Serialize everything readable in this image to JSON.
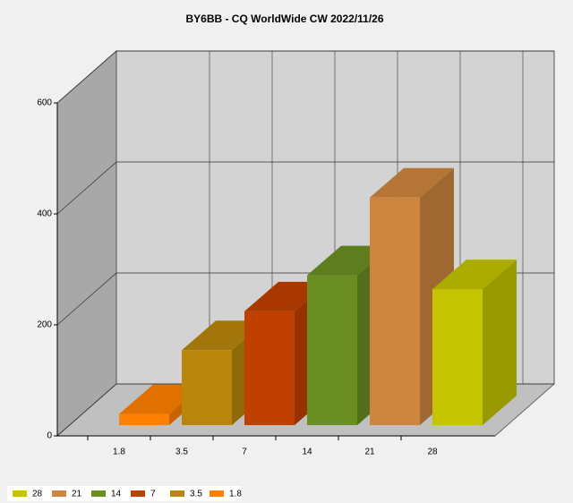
{
  "chart_data": {
    "type": "bar3d",
    "title": "BY6BB - CQ WorldWide CW 2022/11/26",
    "categories": [
      "1.8",
      "3.5",
      "7",
      "14",
      "21",
      "28"
    ],
    "values": [
      20,
      135,
      205,
      270,
      410,
      245
    ],
    "colors": [
      "#ff7f00",
      "#b8860b",
      "#c04000",
      "#6b8e23",
      "#cd853f",
      "#c4c400"
    ],
    "ylim": [
      0,
      600
    ],
    "yticks": [
      0,
      200,
      400,
      600
    ],
    "grid": true,
    "legend": "bottom-left"
  }
}
